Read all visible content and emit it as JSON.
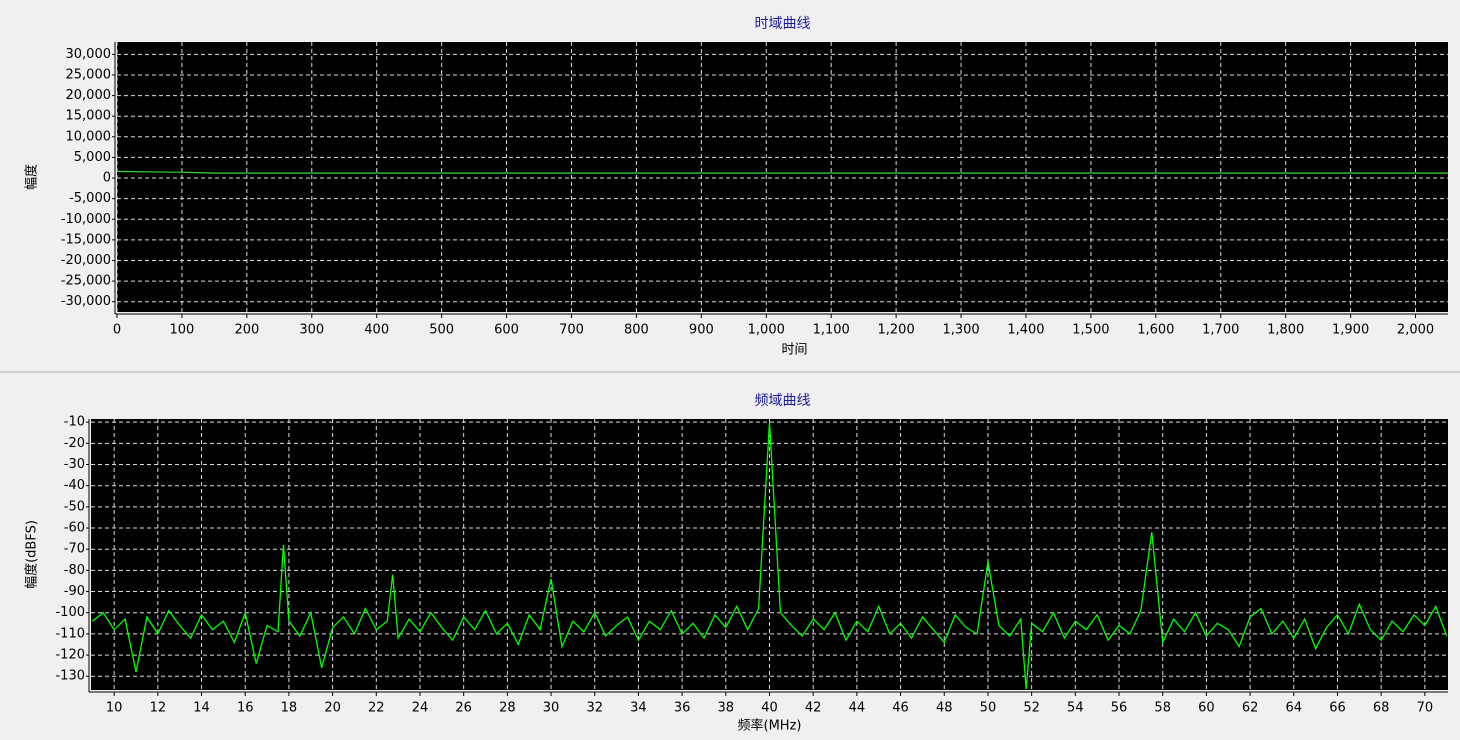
{
  "chart_data": [
    {
      "type": "line",
      "title": "时域曲线",
      "x_label": "时间",
      "y_label": "幅度",
      "grid": true,
      "color": "#33cc33",
      "xlim": [
        0,
        2050
      ],
      "ylim": [
        -32500,
        33000
      ],
      "xticks": [
        0,
        100,
        200,
        300,
        400,
        500,
        600,
        700,
        800,
        900,
        {
          "value": 1000,
          "label": "1,000"
        },
        {
          "value": 1100,
          "label": "1,100"
        },
        {
          "value": 1200,
          "label": "1,200"
        },
        {
          "value": 1300,
          "label": "1,300"
        },
        {
          "value": 1400,
          "label": "1,400"
        },
        {
          "value": 1500,
          "label": "1,500"
        },
        {
          "value": 1600,
          "label": "1,600"
        },
        {
          "value": 1700,
          "label": "1,700"
        },
        {
          "value": 1800,
          "label": "1,800"
        },
        {
          "value": 1900,
          "label": "1,900"
        },
        {
          "value": 2000,
          "label": "2,000"
        }
      ],
      "yticks": [
        {
          "value": 30000,
          "label": "30,000"
        },
        {
          "value": 25000,
          "label": "25,000"
        },
        {
          "value": 20000,
          "label": "20,000"
        },
        {
          "value": 15000,
          "label": "15,000"
        },
        {
          "value": 10000,
          "label": "10,000"
        },
        {
          "value": 5000,
          "label": "5,000"
        },
        0,
        {
          "value": -5000,
          "label": "-5,000"
        },
        {
          "value": -10000,
          "label": "-10,000"
        },
        {
          "value": -15000,
          "label": "-15,000"
        },
        {
          "value": -20000,
          "label": "-20,000"
        },
        {
          "value": -25000,
          "label": "-25,000"
        },
        {
          "value": -30000,
          "label": "-30,000"
        }
      ],
      "x": [
        0,
        50,
        100,
        150,
        200,
        250,
        300,
        350,
        400,
        450,
        500,
        550,
        600,
        650,
        700,
        750,
        800,
        850,
        900,
        950,
        1000,
        1050,
        1100,
        1150,
        1200,
        1250,
        1300,
        1350,
        1400,
        1450,
        1500,
        1550,
        1600,
        1650,
        1700,
        1750,
        1800,
        1850,
        1900,
        1950,
        2000,
        2050
      ],
      "values": [
        1600,
        1500,
        1400,
        1200,
        1200,
        1200,
        1200,
        1200,
        1200,
        1200,
        1200,
        1200,
        1200,
        1200,
        1200,
        1200,
        1200,
        1200,
        1200,
        1200,
        1200,
        1200,
        1200,
        1200,
        1200,
        1200,
        1200,
        1200,
        1200,
        1200,
        1200,
        1200,
        1200,
        1200,
        1200,
        1200,
        1200,
        1200,
        1200,
        1200,
        1200,
        1200
      ]
    },
    {
      "type": "line",
      "title": "频域曲线",
      "x_label": "频率(MHz)",
      "y_label": "幅度(dBFS)",
      "grid": true,
      "color": "#00ff00",
      "xlim": [
        8.94,
        71.06
      ],
      "ylim": [
        -136.5,
        -8.5
      ],
      "xticks": [
        10,
        12,
        14,
        16,
        18,
        20,
        22,
        24,
        26,
        28,
        30,
        32,
        34,
        36,
        38,
        40,
        42,
        44,
        46,
        48,
        50,
        52,
        54,
        56,
        58,
        60,
        62,
        64,
        66,
        68,
        70
      ],
      "yticks": [
        -10,
        -20,
        -30,
        -40,
        -50,
        -60,
        -70,
        -80,
        -90,
        -100,
        -110,
        -120,
        -130
      ],
      "x": [
        9,
        9.5,
        10,
        10.5,
        11,
        11.5,
        12,
        12.5,
        13,
        13.5,
        14,
        14.5,
        15,
        15.5,
        16,
        16.5,
        17,
        17.5,
        17.75,
        18,
        18.5,
        19,
        19.5,
        20,
        20.5,
        21,
        21.5,
        22,
        22.5,
        22.75,
        23,
        23.5,
        24,
        24.5,
        25,
        25.5,
        26,
        26.5,
        27,
        27.5,
        28,
        28.5,
        29,
        29.5,
        30,
        30.5,
        31,
        31.5,
        32,
        32.5,
        33,
        33.5,
        34,
        34.5,
        35,
        35.5,
        36,
        36.5,
        37,
        37.5,
        38,
        38.5,
        39,
        39.5,
        40,
        40.5,
        41,
        41.5,
        42,
        42.5,
        43,
        43.5,
        44,
        44.5,
        45,
        45.5,
        46,
        46.5,
        47,
        47.5,
        48,
        48.5,
        49,
        49.5,
        50,
        50.5,
        51,
        51.5,
        51.75,
        52,
        52.5,
        53,
        53.5,
        54,
        54.5,
        55,
        55.5,
        56,
        56.5,
        57,
        57.5,
        58,
        58.5,
        59,
        59.5,
        60,
        60.5,
        61,
        61.5,
        62,
        62.5,
        63,
        63.5,
        64,
        64.5,
        65,
        65.5,
        66,
        66.5,
        67,
        67.5,
        68,
        68.5,
        69,
        69.5,
        70,
        70.5,
        71
      ],
      "values": [
        -104,
        -100,
        -108,
        -103,
        -128,
        -102,
        -110,
        -99,
        -106,
        -112,
        -101,
        -108,
        -104,
        -114,
        -100,
        -124,
        -106,
        -109,
        -68,
        -104,
        -111,
        -100,
        -126,
        -107,
        -102,
        -110,
        -98,
        -108,
        -104,
        -82,
        -112,
        -103,
        -109,
        -100,
        -107,
        -113,
        -102,
        -108,
        -99,
        -110,
        -105,
        -115,
        -101,
        -108,
        -84,
        -116,
        -104,
        -109,
        -100,
        -111,
        -106,
        -102,
        -113,
        -104,
        -108,
        -99,
        -110,
        -105,
        -112,
        -101,
        -107,
        -97,
        -108,
        -98,
        -10,
        -100,
        -106,
        -111,
        -103,
        -108,
        -100,
        -113,
        -104,
        -109,
        -97,
        -110,
        -105,
        -112,
        -102,
        -108,
        -114,
        -101,
        -107,
        -110,
        -76,
        -106,
        -111,
        -103,
        -136,
        -105,
        -109,
        -100,
        -112,
        -104,
        -108,
        -101,
        -113,
        -106,
        -110,
        -99,
        -62,
        -114,
        -103,
        -109,
        -100,
        -111,
        -105,
        -108,
        -116,
        -102,
        -98,
        -110,
        -104,
        -112,
        -103,
        -117,
        -107,
        -101,
        -110,
        -96,
        -108,
        -113,
        -104,
        -109,
        -101,
        -106,
        -97,
        -111
      ]
    }
  ]
}
